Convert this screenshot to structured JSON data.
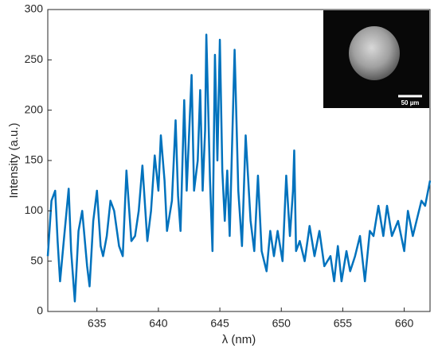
{
  "chart_data": {
    "type": "line",
    "xlabel": "λ (nm)",
    "ylabel": "Intensity (a.u.)",
    "inset_scale_label": "50 µm",
    "color": "#0072bd",
    "xlim": [
      631,
      662.1
    ],
    "ylim": [
      0,
      300
    ],
    "xticks": [
      635,
      640,
      645,
      650,
      655,
      660
    ],
    "yticks": [
      0,
      50,
      100,
      150,
      200,
      250,
      300
    ],
    "grid": false,
    "x": [
      631.0,
      631.3,
      631.6,
      631.8,
      632.0,
      632.3,
      632.7,
      632.9,
      633.2,
      633.5,
      633.8,
      634.2,
      634.4,
      634.7,
      635.0,
      635.3,
      635.5,
      635.8,
      636.1,
      636.4,
      636.8,
      637.1,
      637.4,
      637.8,
      638.1,
      638.4,
      638.7,
      639.1,
      639.4,
      639.7,
      640.0,
      640.2,
      640.5,
      640.7,
      641.1,
      641.4,
      641.6,
      641.8,
      642.1,
      642.3,
      642.7,
      642.9,
      643.2,
      643.4,
      643.6,
      643.8,
      643.9,
      644.2,
      644.4,
      644.6,
      644.8,
      645.0,
      645.2,
      645.4,
      645.6,
      645.8,
      646.2,
      646.5,
      646.8,
      647.1,
      647.5,
      647.8,
      648.1,
      648.4,
      648.8,
      649.1,
      649.4,
      649.7,
      650.1,
      650.4,
      650.7,
      650.95,
      651.05,
      651.2,
      651.5,
      651.9,
      652.3,
      652.7,
      653.1,
      653.5,
      654.0,
      654.3,
      654.6,
      654.9,
      655.3,
      655.6,
      656.0,
      656.4,
      656.8,
      657.2,
      657.5,
      657.9,
      658.3,
      658.6,
      659.0,
      659.5,
      660.0,
      660.3,
      660.7,
      661.0,
      661.4,
      661.7,
      662.1
    ],
    "values": [
      55,
      110,
      120,
      70,
      30,
      70,
      122,
      60,
      10,
      80,
      100,
      45,
      25,
      90,
      120,
      65,
      55,
      75,
      110,
      100,
      65,
      55,
      140,
      70,
      75,
      100,
      145,
      70,
      100,
      155,
      120,
      175,
      130,
      80,
      110,
      190,
      115,
      80,
      210,
      120,
      235,
      120,
      150,
      220,
      120,
      180,
      275,
      130,
      60,
      255,
      150,
      270,
      140,
      90,
      140,
      75,
      260,
      120,
      65,
      175,
      90,
      60,
      135,
      60,
      40,
      80,
      55,
      80,
      50,
      135,
      75,
      120,
      160,
      60,
      70,
      50,
      85,
      55,
      80,
      45,
      55,
      30,
      65,
      30,
      60,
      40,
      55,
      75,
      30,
      80,
      75,
      105,
      75,
      105,
      75,
      90,
      60,
      100,
      75,
      90,
      110,
      105,
      130
    ]
  }
}
